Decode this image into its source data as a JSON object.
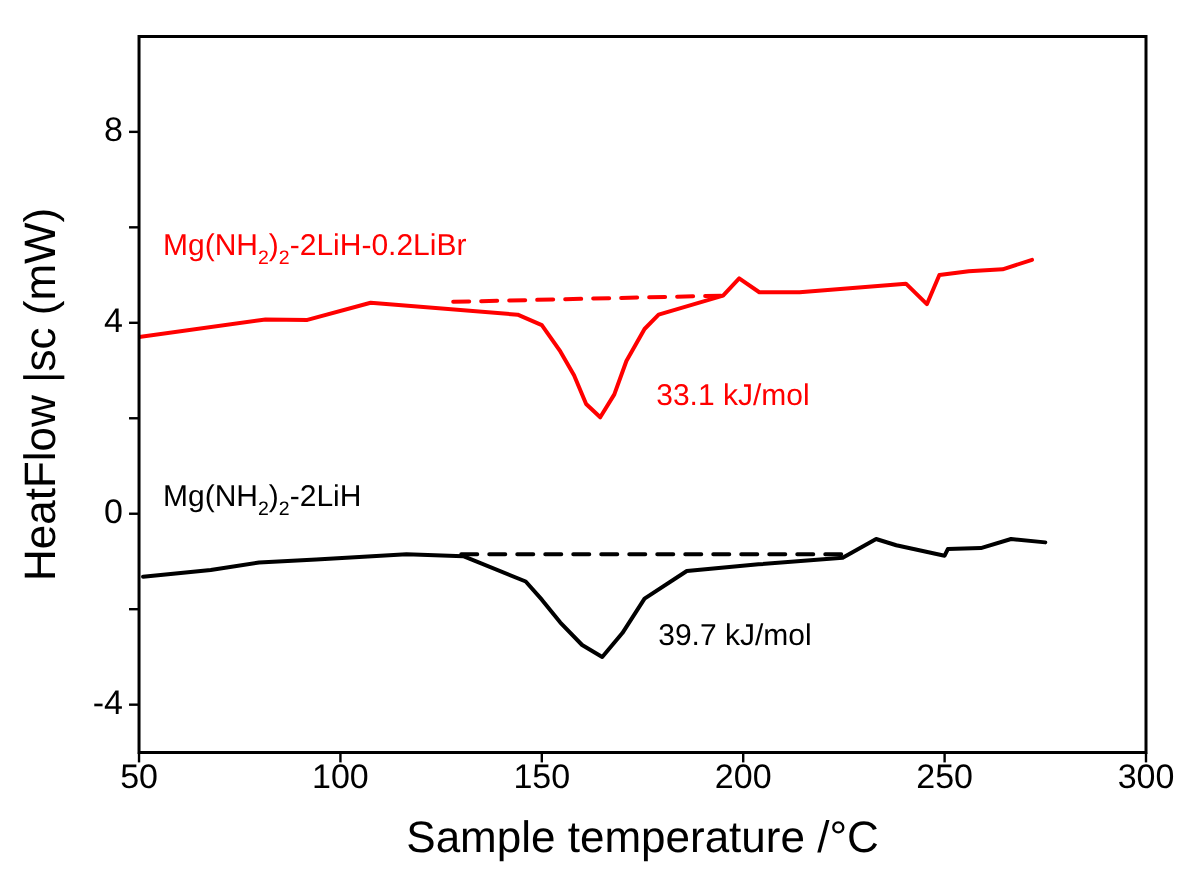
{
  "chart_data": {
    "type": "line",
    "xlabel": "Sample temperature /°C",
    "ylabel": "HeatFlow |sc (mW)",
    "xlim": [
      50,
      300
    ],
    "xticks": [
      50,
      100,
      150,
      200,
      250,
      300
    ],
    "ylim": [
      -5,
      10
    ],
    "yticks": [
      -4,
      {
        "value": -2,
        "label": null
      },
      0,
      {
        "value": 2,
        "label": null
      },
      4,
      {
        "value": 6,
        "label": null
      },
      8
    ],
    "grid": false,
    "legend": false,
    "marker": "none",
    "series": [
      {
        "color": "#ff0000",
        "line_style": "solid",
        "x": [
          50,
          81.4,
          91.8,
          107.5,
          144,
          150,
          154.6,
          158,
          161,
          164.5,
          168,
          171,
          175.5,
          179,
          195,
          199,
          204,
          214,
          240.4,
          245.6,
          248.7,
          256,
          264.4,
          271.7
        ],
        "values": [
          3.7,
          4.07,
          4.06,
          4.42,
          4.17,
          3.95,
          3.4,
          2.9,
          2.3,
          2.02,
          2.5,
          3.2,
          3.87,
          4.17,
          4.57,
          4.93,
          4.64,
          4.64,
          4.82,
          4.39,
          5.0,
          5.08,
          5.12,
          5.32
        ]
      },
      {
        "color": "#000000",
        "line_style": "solid",
        "x": [
          51,
          67.8,
          79.8,
          94,
          116.4,
          130.5,
          146,
          150,
          154.6,
          160,
          165,
          170,
          175.5,
          186,
          203.8,
          224.7,
          233,
          238,
          250,
          250.8,
          259,
          266.5,
          275
        ],
        "values": [
          -1.32,
          -1.18,
          -1.02,
          -0.96,
          -0.85,
          -0.89,
          -1.42,
          -1.8,
          -2.28,
          -2.75,
          -3.0,
          -2.5,
          -1.78,
          -1.2,
          -1.06,
          -0.92,
          -0.53,
          -0.66,
          -0.88,
          -0.74,
          -0.72,
          -0.53,
          -0.6
        ]
      },
      {
        "color": "#ff0000",
        "line_style": "dashed",
        "x": [
          128,
          195
        ],
        "values": [
          4.44,
          4.57
        ]
      },
      {
        "color": "#000000",
        "line_style": "dashed",
        "x": [
          130,
          226
        ],
        "values": [
          -0.85,
          -0.85
        ]
      }
    ],
    "annotations": [
      "Mg(NH$_{2}$)$_{2}$-2LiH-0.2LiBr",
      "33.1 kJ/mol",
      "Mg(NH$_{2}$)$_{2}$-2LiH",
      "39.7 kJ/mol"
    ]
  }
}
